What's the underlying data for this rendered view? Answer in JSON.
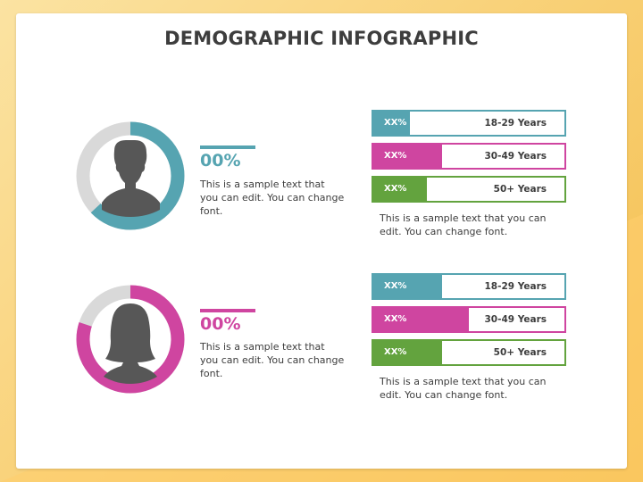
{
  "title": "DEMOGRAPHIC INFOGRAPHIC",
  "colors": {
    "teal": "#56a4b1",
    "magenta": "#cf45a0",
    "green": "#63a33e",
    "grey": "#d9d9d9",
    "silhouette": "#575757"
  },
  "male": {
    "icon": "male-silhouette-icon",
    "percent_label": "00%",
    "donut_share": 0.63,
    "description": "This is a sample text that you can edit. You can change font.",
    "bars": [
      {
        "value_label": "XX%",
        "age": "18-29 Years",
        "share": 0.19
      },
      {
        "value_label": "XX%",
        "age": "30-49 Years",
        "share": 0.36
      },
      {
        "value_label": "XX%",
        "age": "50+ Years",
        "share": 0.28
      }
    ],
    "note": "This is a sample text that you can edit. You can change font."
  },
  "female": {
    "icon": "female-silhouette-icon",
    "percent_label": "00%",
    "donut_share": 0.8,
    "description": "This is a sample text that you can edit. You can change font.",
    "bars": [
      {
        "value_label": "XX%",
        "age": "18-29 Years",
        "share": 0.36
      },
      {
        "value_label": "XX%",
        "age": "30-49 Years",
        "share": 0.5
      },
      {
        "value_label": "XX%",
        "age": "50+ Years",
        "share": 0.36
      }
    ],
    "note": "This is a sample text that you can edit. You can change font."
  }
}
